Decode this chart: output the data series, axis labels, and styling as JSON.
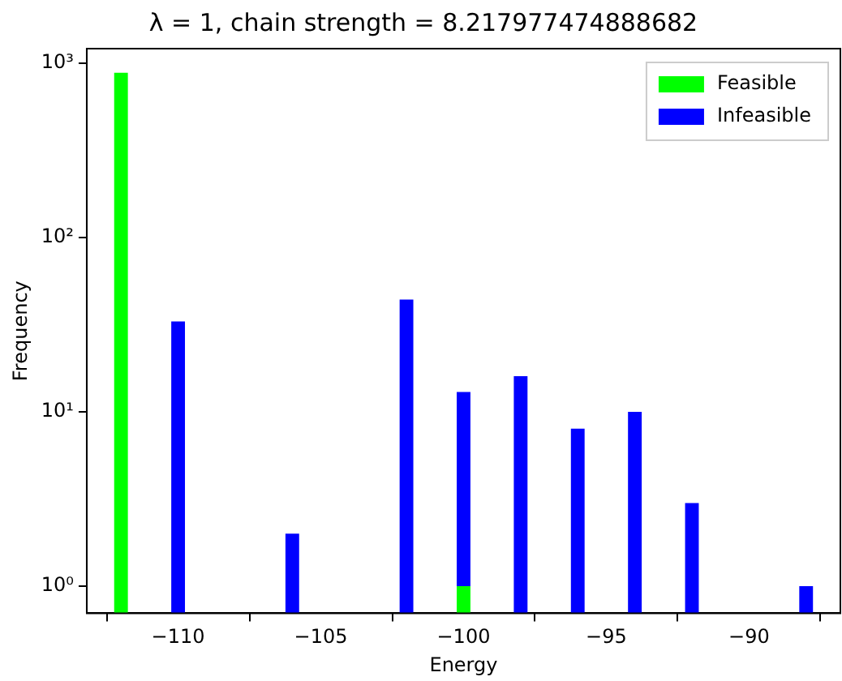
{
  "chart_data": {
    "type": "bar",
    "title": "λ = 1, chain strength = 8.217977474888682",
    "xlabel": "Energy",
    "ylabel": "Frequency",
    "x": [
      -112,
      -110,
      -106,
      -102,
      -100,
      -98,
      -96,
      -94,
      -92,
      -88
    ],
    "series": [
      {
        "name": "Feasible",
        "color": "#00ff00",
        "values": [
          880,
          null,
          null,
          null,
          1,
          null,
          null,
          null,
          null,
          null
        ]
      },
      {
        "name": "Infeasible",
        "color": "#0000ff",
        "values": [
          null,
          33,
          2,
          44,
          12,
          16,
          8,
          10,
          3,
          1
        ]
      }
    ],
    "stacked": true,
    "log": "y",
    "xlim": [
      -113.2,
      -86.8
    ],
    "xticks": [
      -110,
      -105,
      -100,
      -95,
      -90
    ],
    "ylim": [
      0.72,
      1210
    ],
    "yticks": [
      {
        "value": 1,
        "label": "10⁰"
      },
      {
        "value": 10,
        "label": "10¹"
      },
      {
        "value": 100,
        "label": "10²"
      },
      {
        "value": 1000,
        "label": "10³"
      }
    ],
    "grid": false,
    "legend": "top right"
  }
}
